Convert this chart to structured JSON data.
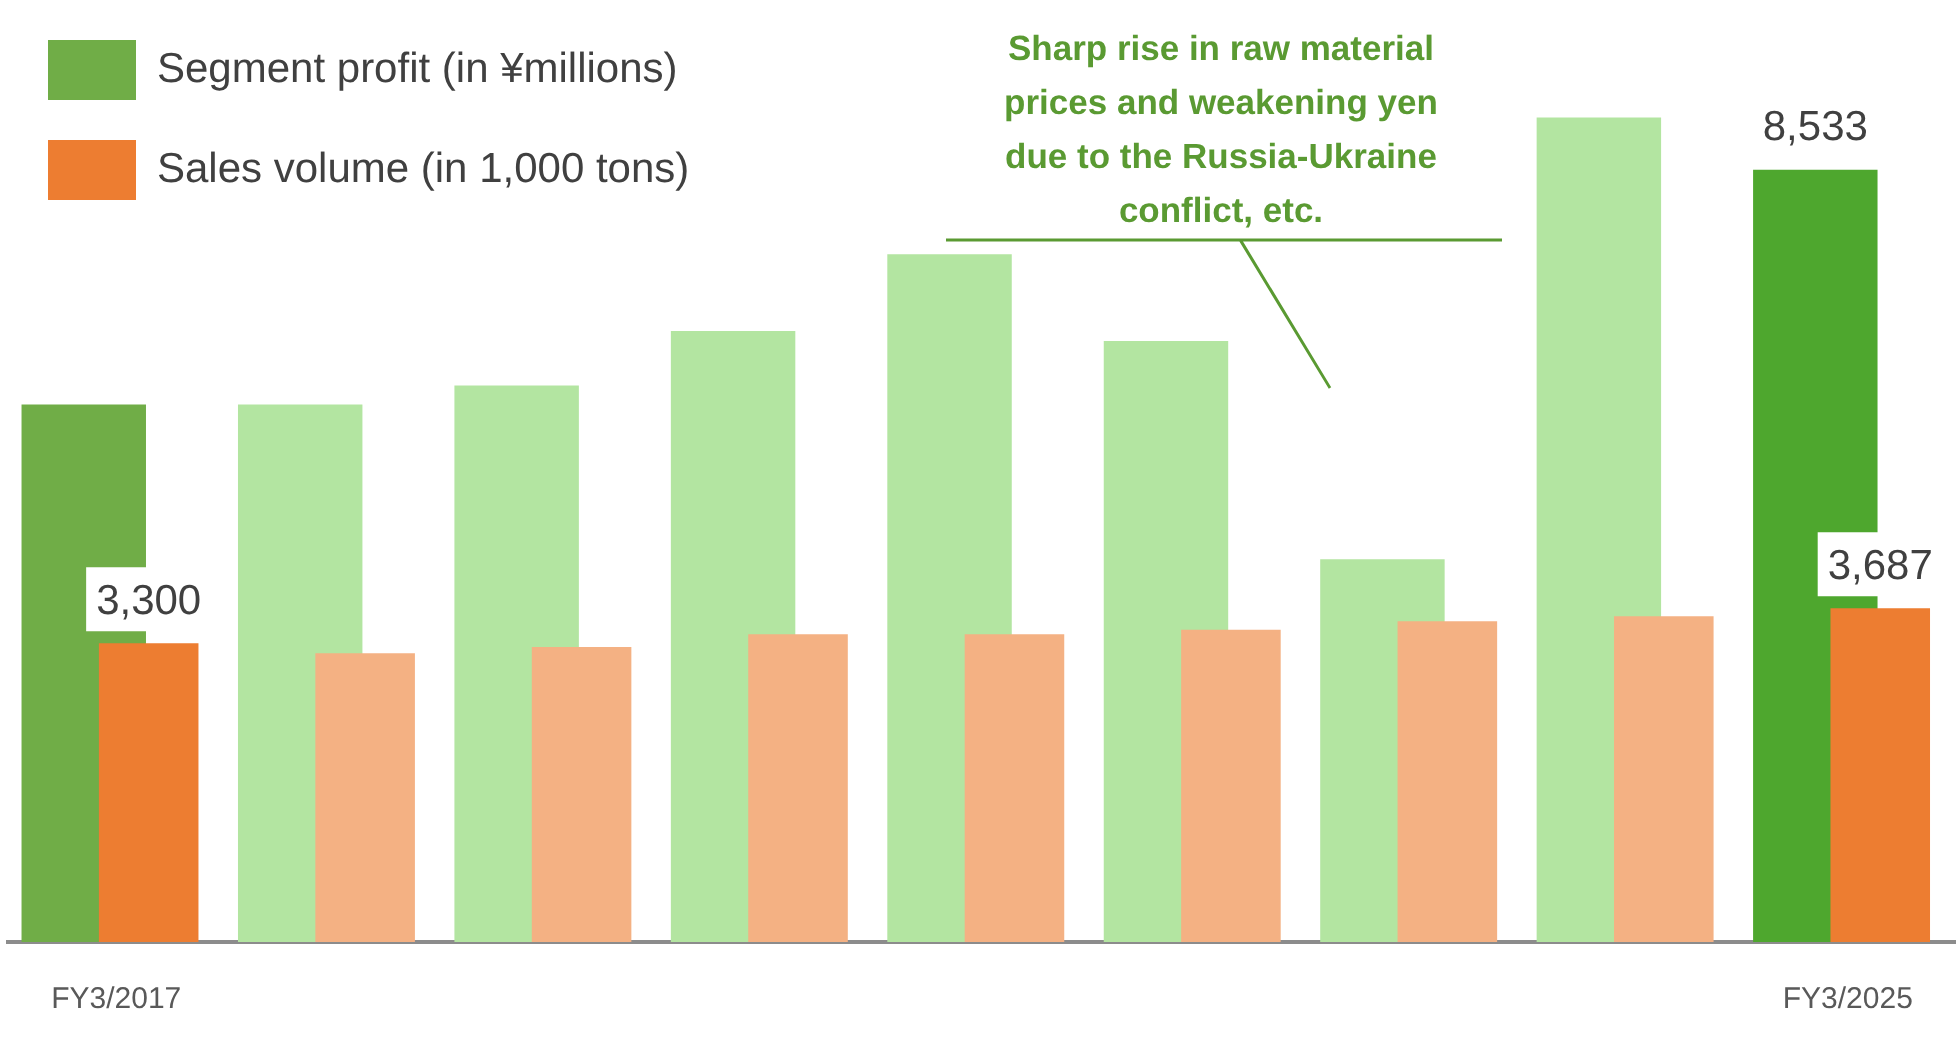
{
  "chart_data": {
    "type": "bar",
    "categories": [
      "FY3/2017",
      null,
      null,
      null,
      null,
      null,
      null,
      null,
      "FY3/2025"
    ],
    "series": [
      {
        "name": "Segment profit (in ¥millions)",
        "colors": [
          "#70ad47",
          "#b3e5a1",
          "#b3e5a1",
          "#b3e5a1",
          "#b3e5a1",
          "#b3e5a1",
          "#b3e5a1",
          "#b3e5a1",
          "#4ea72e"
        ],
        "values": [
          5940,
          5940,
          6150,
          6750,
          7600,
          6640,
          4230,
          9110,
          8533
        ],
        "value_labels": [
          null,
          null,
          null,
          null,
          null,
          null,
          null,
          null,
          "8,533"
        ]
      },
      {
        "name": "Sales volume (in 1,000 tons)",
        "colors": [
          "#ed7d31",
          "#f4b183",
          "#f4b183",
          "#f4b183",
          "#f4b183",
          "#f4b183",
          "#f4b183",
          "#f4b183",
          "#ed7d31"
        ],
        "values": [
          3300,
          3190,
          3260,
          3400,
          3400,
          3450,
          3545,
          3600,
          3687
        ],
        "value_labels": [
          "3,300",
          null,
          null,
          null,
          null,
          null,
          null,
          null,
          "3,687"
        ]
      }
    ],
    "tick_labels": "x",
    "legend": "top left",
    "grid": false,
    "annotations": [
      "Sharp rise in raw material prices and weakening yen due to the Russia-Ukraine conflict, etc."
    ]
  }
}
